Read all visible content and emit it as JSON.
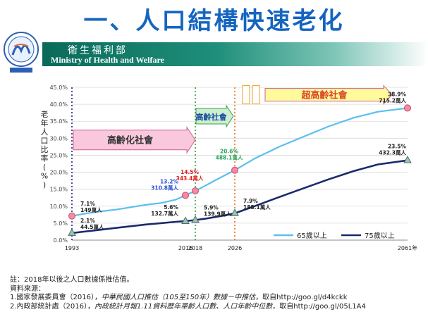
{
  "slide": {
    "title": "一、人口結構快速老化",
    "ministry_zh": "衛生福利部",
    "ministry_en": "Ministry of Health and Welfare"
  },
  "chart_data": {
    "type": "line",
    "ylabel": "老年人口比率(%)",
    "xlabel_suffix": "年",
    "ylim": [
      0,
      45
    ],
    "y_ticks": [
      0,
      5,
      10,
      15,
      20,
      25,
      30,
      35,
      40,
      45
    ],
    "y_tick_labels": [
      "0.0%",
      "5.0%",
      "10.0%",
      "15.0%",
      "20.0%",
      "25.0%",
      "30.0%",
      "35.0%",
      "40.0%",
      "45.0%"
    ],
    "xlim": [
      1993,
      2061
    ],
    "x_tick_labels": [
      "1993",
      "2016",
      "2018",
      "2026",
      "2061年"
    ],
    "x_tick_values": [
      1993,
      2016,
      2018,
      2026,
      2061
    ],
    "legend_position": "bottom-right",
    "series": [
      {
        "name": "65歲以上",
        "color": "#5bc0eb",
        "x": [
          1993,
          1996,
          1999,
          2002,
          2005,
          2008,
          2011,
          2014,
          2016,
          2018,
          2020,
          2022,
          2024,
          2026,
          2030,
          2035,
          2040,
          2045,
          2050,
          2055,
          2061
        ],
        "y": [
          7.1,
          7.9,
          8.5,
          9.0,
          9.7,
          10.4,
          10.9,
          11.9,
          13.2,
          14.5,
          16.0,
          17.6,
          19.1,
          20.6,
          24.0,
          27.5,
          30.5,
          33.5,
          36.0,
          37.8,
          38.9
        ]
      },
      {
        "name": "75歲以上",
        "color": "#1a2a6c",
        "x": [
          1993,
          1996,
          1999,
          2002,
          2005,
          2008,
          2011,
          2014,
          2016,
          2018,
          2020,
          2022,
          2024,
          2026,
          2030,
          2035,
          2040,
          2045,
          2050,
          2055,
          2061
        ],
        "y": [
          2.1,
          2.6,
          3.1,
          3.6,
          4.1,
          4.6,
          5.0,
          5.4,
          5.6,
          5.9,
          6.3,
          6.8,
          7.3,
          7.9,
          10.0,
          12.7,
          15.3,
          17.9,
          20.3,
          22.3,
          23.5
        ]
      }
    ],
    "markers": [
      {
        "series": "65歲以上",
        "x": 1993,
        "y": 7.1
      },
      {
        "series": "65歲以上",
        "x": 2016,
        "y": 13.2
      },
      {
        "series": "65歲以上",
        "x": 2018,
        "y": 14.5
      },
      {
        "series": "65歲以上",
        "x": 2026,
        "y": 20.6
      },
      {
        "series": "65歲以上",
        "x": 2061,
        "y": 38.9
      },
      {
        "series": "75歲以上",
        "x": 1993,
        "y": 2.1
      },
      {
        "series": "75歲以上",
        "x": 2016,
        "y": 5.6
      },
      {
        "series": "75歲以上",
        "x": 2018,
        "y": 5.9
      },
      {
        "series": "75歲以上",
        "x": 2026,
        "y": 7.9
      },
      {
        "series": "75歲以上",
        "x": 2061,
        "y": 23.5
      }
    ],
    "annotations": [
      {
        "lines": [
          "7.1%",
          "149萬人"
        ],
        "color": "#222222",
        "x": 1993,
        "y": 7.1,
        "anchor": "right-up"
      },
      {
        "lines": [
          "2.1%",
          "44.5萬人"
        ],
        "color": "#222222",
        "x": 1993,
        "y": 2.1,
        "anchor": "right-up"
      },
      {
        "lines": [
          "13.2%",
          "310.8萬人"
        ],
        "color": "#2a4fd8",
        "x": 2016,
        "y": 13.2,
        "anchor": "left-up"
      },
      {
        "lines": [
          "5.6%",
          "132.7萬人"
        ],
        "color": "#222222",
        "x": 2016,
        "y": 5.6,
        "anchor": "left-up"
      },
      {
        "lines": [
          "14.5%",
          "343.4萬人"
        ],
        "color": "#e02020",
        "x": 2018,
        "y": 14.5,
        "anchor": "right-up-far"
      },
      {
        "lines": [
          "5.9%",
          "139.9萬人"
        ],
        "color": "#222222",
        "x": 2018,
        "y": 5.9,
        "anchor": "right-up"
      },
      {
        "lines": [
          "20.6%",
          "488.1萬人"
        ],
        "color": "#2aa55a",
        "x": 2026,
        "y": 20.6,
        "anchor": "right-up-far"
      },
      {
        "lines": [
          "7.9%",
          "188.1萬人"
        ],
        "color": "#222222",
        "x": 2026,
        "y": 7.9,
        "anchor": "right-up"
      },
      {
        "lines": [
          "38.9%",
          "715.2萬人"
        ],
        "color": "#222222",
        "x": 2061,
        "y": 38.9,
        "anchor": "left-up"
      },
      {
        "lines": [
          "23.5%",
          "432.3萬人"
        ],
        "color": "#222222",
        "x": 2061,
        "y": 23.5,
        "anchor": "left-up"
      }
    ],
    "phase_arrows": [
      {
        "label": "高齡化社會",
        "start": 1993,
        "end": 2018,
        "y": 29.5
      },
      {
        "label": "高齡社會",
        "start": 2018,
        "end": 2026,
        "y": 36.5
      },
      {
        "label": "超高齡社會",
        "start": 2026,
        "end": 2061,
        "y": 42.8
      }
    ],
    "vlines": [
      {
        "x": 1993,
        "color": "#1a237e"
      },
      {
        "x": 2018,
        "color": "#2e9e44"
      },
      {
        "x": 2026,
        "color": "#e8741c"
      }
    ]
  },
  "notes": {
    "note": "註：2018年以後之人口數據係推估值。",
    "source_title": "資料來源：",
    "source1_prefix": "1.國家發展委員會（2016），",
    "source1_italic": "中華民國人口推估（105至150年）數據－中推估",
    "source1_suffix": "，取自http://goo.gl/d4kckk",
    "source2_prefix": "2.內政部統計處（2016），",
    "source2_italic": "內政統計月報1.11資料歷年單齡人口數、人口年齡中位數",
    "source2_suffix": "，取自http://goo.gl/05L1A4"
  }
}
